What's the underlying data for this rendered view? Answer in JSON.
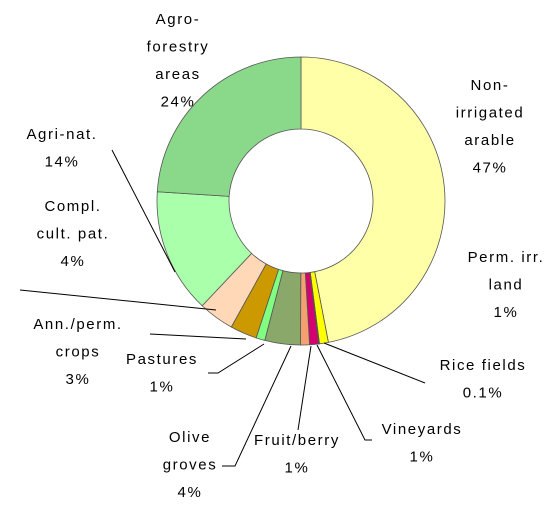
{
  "chart_data": {
    "type": "donut",
    "categories": [
      [
        "Non-",
        "irrigated",
        "arable"
      ],
      [
        "Perm. irr.",
        "land"
      ],
      [
        "Rice fields"
      ],
      [
        "Vineyards"
      ],
      [
        "Fruit/berry"
      ],
      [
        "Olive",
        "groves"
      ],
      [
        "Pastures"
      ],
      [
        "Ann./perm.",
        "crops"
      ],
      [
        "Compl.",
        "cult. pat."
      ],
      [
        "Agri-nat."
      ],
      [
        "Agro-",
        "forestry",
        "areas"
      ]
    ],
    "values": [
      47,
      1,
      0.1,
      1,
      1,
      4,
      1,
      3,
      4,
      14,
      24
    ],
    "value_labels": [
      "47%",
      "1%",
      "0.1%",
      "1%",
      "1%",
      "4%",
      "1%",
      "3%",
      "4%",
      "14%",
      "24%"
    ],
    "colors": [
      "#ffffa8",
      "#ffff00",
      "#800080",
      "#d4006f",
      "#f4a070",
      "#8aa86a",
      "#80ff80",
      "#cc9900",
      "#ffd8b8",
      "#aaffaa",
      "#8ad88a"
    ]
  }
}
